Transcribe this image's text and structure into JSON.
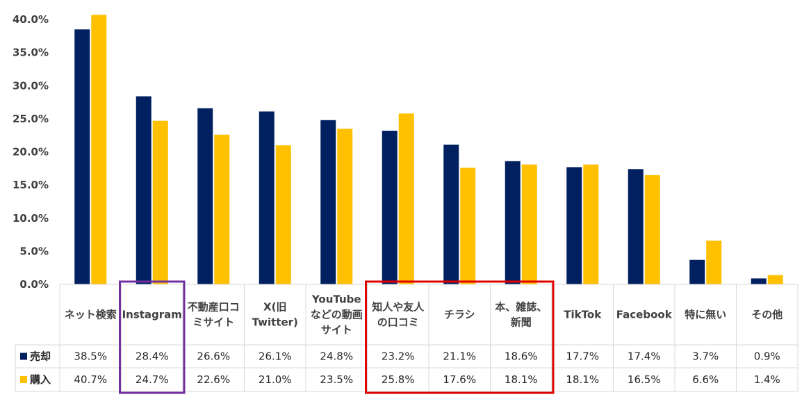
{
  "chart_data": {
    "type": "bar",
    "categories": [
      [
        "ネット検索"
      ],
      [
        "Instagram"
      ],
      [
        "不動産口コ",
        "ミサイト"
      ],
      [
        "X(旧",
        "Twitter)"
      ],
      [
        "YouTube",
        "などの動画",
        "サイト"
      ],
      [
        "知人や友人",
        "の口コミ"
      ],
      [
        "チラシ"
      ],
      [
        "本、雑誌、",
        "新聞"
      ],
      [
        "TikTok"
      ],
      [
        "Facebook"
      ],
      [
        "特に無い"
      ],
      [
        "その他"
      ]
    ],
    "series": [
      {
        "name": "売却",
        "color": "#002060",
        "values": [
          38.5,
          28.4,
          26.6,
          26.1,
          24.8,
          23.2,
          21.1,
          18.6,
          17.7,
          17.4,
          3.7,
          0.9
        ],
        "labels": [
          "38.5%",
          "28.4%",
          "26.6%",
          "26.1%",
          "24.8%",
          "23.2%",
          "21.1%",
          "18.6%",
          "17.7%",
          "17.4%",
          "3.7%",
          "0.9%"
        ]
      },
      {
        "name": "購入",
        "color": "#FFC000",
        "values": [
          40.7,
          24.7,
          22.6,
          21.0,
          23.5,
          25.8,
          17.6,
          18.1,
          18.1,
          16.5,
          6.6,
          1.4
        ],
        "labels": [
          "40.7%",
          "24.7%",
          "22.6%",
          "21.0%",
          "23.5%",
          "25.8%",
          "17.6%",
          "18.1%",
          "18.1%",
          "16.5%",
          "6.6%",
          "1.4%"
        ]
      }
    ],
    "yticks": [
      "0.0%",
      "5.0%",
      "10.0%",
      "15.0%",
      "20.0%",
      "25.0%",
      "30.0%",
      "35.0%",
      "40.0%"
    ],
    "ylim": [
      0,
      40
    ],
    "highlights": [
      {
        "color": "#7030A0",
        "from": 1,
        "to": 1
      },
      {
        "color": "#E00000",
        "from": 5,
        "to": 7
      }
    ],
    "title": "",
    "xlabel": "",
    "ylabel": ""
  }
}
